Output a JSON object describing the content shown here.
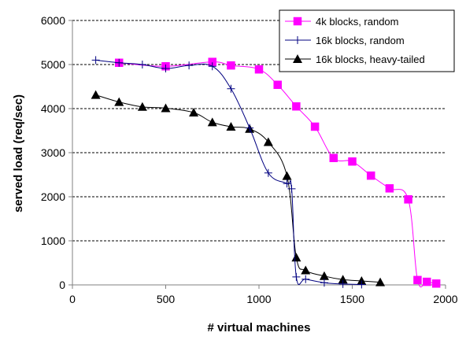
{
  "chart_data": {
    "type": "line",
    "title": "",
    "xlabel": "# virtual machines",
    "ylabel": "served load (req/sec)",
    "xlim": [
      0,
      2000
    ],
    "ylim": [
      0,
      6000
    ],
    "x_ticks": [
      0,
      500,
      1000,
      1500,
      2000
    ],
    "y_ticks": [
      0,
      1000,
      2000,
      3000,
      4000,
      5000,
      6000
    ],
    "grid": "horizontal dashed",
    "legend_position": "top-right",
    "series": [
      {
        "name": "4k blocks, random",
        "color": "#ff00ff",
        "marker": "square",
        "x": [
          250,
          500,
          750,
          850,
          1000,
          1100,
          1200,
          1300,
          1400,
          1500,
          1600,
          1700,
          1800,
          1850,
          1900,
          1950
        ],
        "y": [
          5040,
          4960,
          5060,
          4980,
          4890,
          4540,
          4050,
          3590,
          2880,
          2800,
          2480,
          2190,
          1940,
          110,
          70,
          30
        ]
      },
      {
        "name": "16k blocks, random",
        "color": "#000080",
        "marker": "plus",
        "x": [
          125,
          250,
          375,
          500,
          625,
          750,
          850,
          950,
          1050,
          1150,
          1175,
          1200,
          1250,
          1350,
          1450,
          1550
        ],
        "y": [
          5100,
          5040,
          5000,
          4910,
          4980,
          4960,
          4450,
          3560,
          2540,
          2300,
          2180,
          180,
          130,
          50,
          20,
          10
        ]
      },
      {
        "name": "16k blocks, heavy-tailed",
        "color": "#000000",
        "marker": "triangle",
        "x": [
          125,
          250,
          375,
          500,
          650,
          750,
          850,
          950,
          1050,
          1150,
          1200,
          1250,
          1350,
          1450,
          1550,
          1650
        ],
        "y": [
          4310,
          4150,
          4040,
          4010,
          3910,
          3690,
          3590,
          3540,
          3240,
          2470,
          620,
          330,
          200,
          120,
          90,
          60
        ]
      }
    ]
  }
}
